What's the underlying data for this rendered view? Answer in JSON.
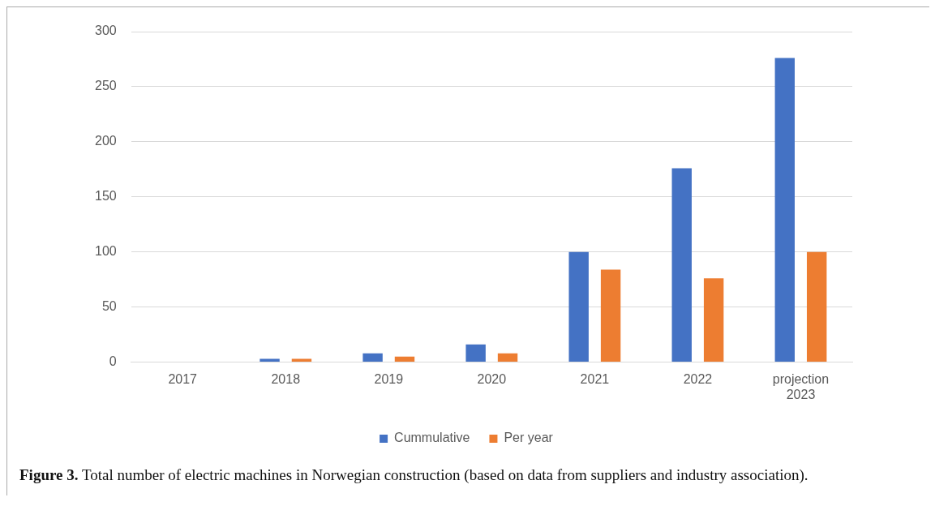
{
  "chart_data": {
    "type": "bar",
    "categories": [
      "2017",
      "2018",
      "2019",
      "2020",
      "2021",
      "2022",
      "projection 2023"
    ],
    "series": [
      {
        "name": "Cummulative",
        "color": "#4472c4",
        "values": [
          0,
          3,
          8,
          16,
          100,
          176,
          276
        ]
      },
      {
        "name": "Per year",
        "color": "#ed7d31",
        "values": [
          0,
          3,
          5,
          8,
          84,
          76,
          100
        ]
      }
    ],
    "ylim": [
      0,
      300
    ],
    "yticks": [
      0,
      50,
      100,
      150,
      200,
      250,
      300
    ],
    "grid": "y",
    "legend": "bottom",
    "annotations": [
      "Figure 3. Total number of electric machines in Norwegian construction (based on data from suppliers and industry association)."
    ]
  }
}
